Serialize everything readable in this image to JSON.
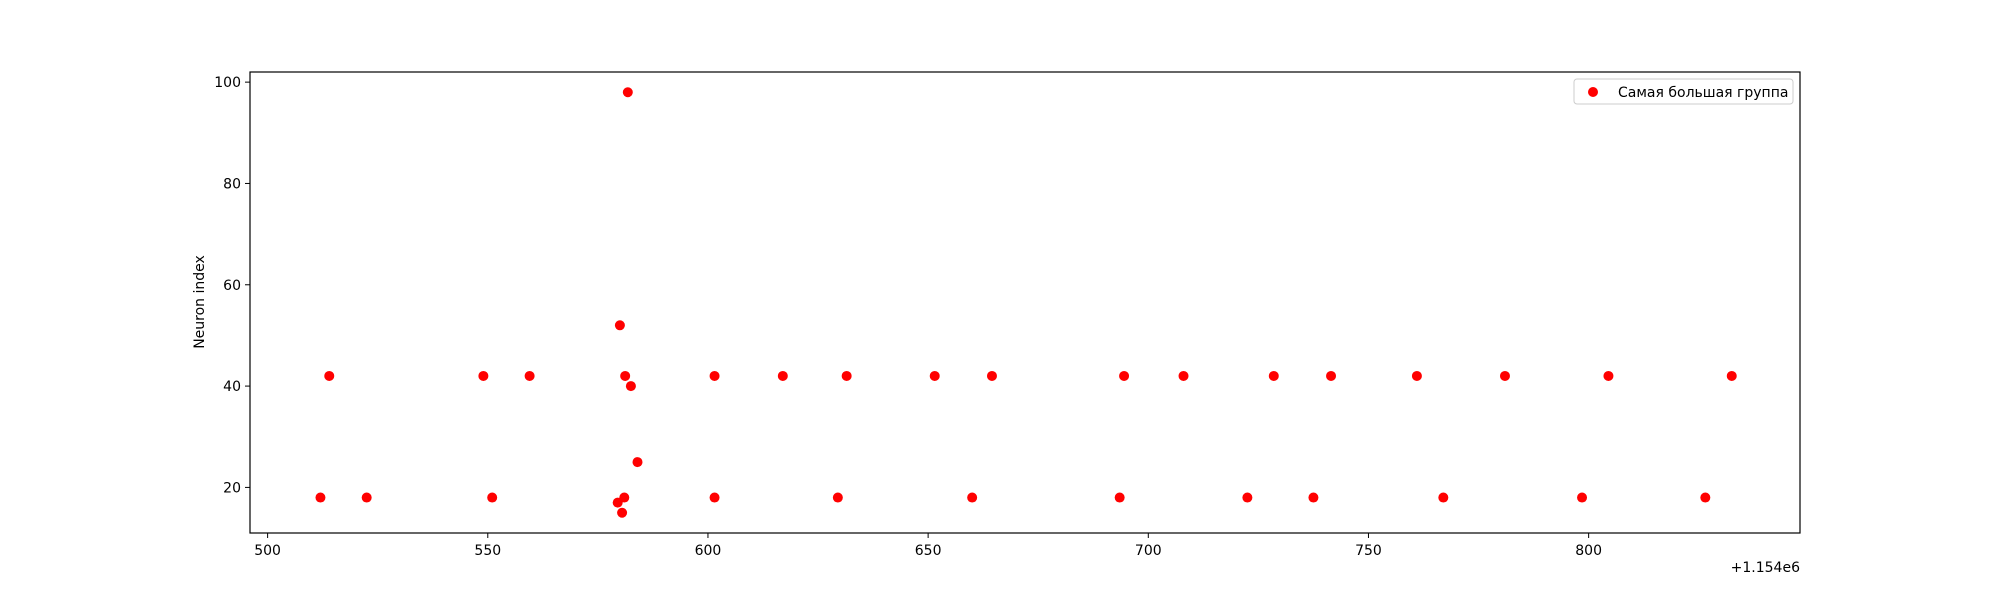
{
  "chart_data": {
    "type": "scatter",
    "xlabel": "",
    "ylabel": "Neuron index",
    "x_offset_label": "+1.154e6",
    "xlim": [
      1154496,
      1154848
    ],
    "ylim": [
      11,
      102
    ],
    "x_ticks": [
      500,
      550,
      600,
      650,
      700,
      750,
      800
    ],
    "y_ticks": [
      20,
      40,
      60,
      80,
      100
    ],
    "grid": false,
    "legend_position": "top-right",
    "series": [
      {
        "name": "Самая большая группа",
        "color": "#ff0000",
        "points": [
          {
            "x": 1154512,
            "y": 18
          },
          {
            "x": 1154514,
            "y": 42
          },
          {
            "x": 1154522.5,
            "y": 18
          },
          {
            "x": 1154549,
            "y": 42
          },
          {
            "x": 1154551,
            "y": 18
          },
          {
            "x": 1154559.5,
            "y": 42
          },
          {
            "x": 1154579.5,
            "y": 17
          },
          {
            "x": 1154580,
            "y": 52
          },
          {
            "x": 1154580.5,
            "y": 15
          },
          {
            "x": 1154581,
            "y": 18
          },
          {
            "x": 1154581.2,
            "y": 42
          },
          {
            "x": 1154581.8,
            "y": 98
          },
          {
            "x": 1154582.5,
            "y": 40
          },
          {
            "x": 1154584,
            "y": 25
          },
          {
            "x": 1154601.5,
            "y": 42
          },
          {
            "x": 1154601.5,
            "y": 18
          },
          {
            "x": 1154617,
            "y": 42
          },
          {
            "x": 1154629.5,
            "y": 18
          },
          {
            "x": 1154631.5,
            "y": 42
          },
          {
            "x": 1154651.5,
            "y": 42
          },
          {
            "x": 1154660,
            "y": 18
          },
          {
            "x": 1154664.5,
            "y": 42
          },
          {
            "x": 1154693.5,
            "y": 18
          },
          {
            "x": 1154694.5,
            "y": 42
          },
          {
            "x": 1154708,
            "y": 42
          },
          {
            "x": 1154722.5,
            "y": 18
          },
          {
            "x": 1154728.5,
            "y": 42
          },
          {
            "x": 1154737.5,
            "y": 18
          },
          {
            "x": 1154741.5,
            "y": 42
          },
          {
            "x": 1154761,
            "y": 42
          },
          {
            "x": 1154767,
            "y": 18
          },
          {
            "x": 1154781,
            "y": 42
          },
          {
            "x": 1154798.5,
            "y": 18
          },
          {
            "x": 1154804.5,
            "y": 42
          },
          {
            "x": 1154826.5,
            "y": 18
          },
          {
            "x": 1154832.5,
            "y": 42
          }
        ]
      }
    ]
  }
}
